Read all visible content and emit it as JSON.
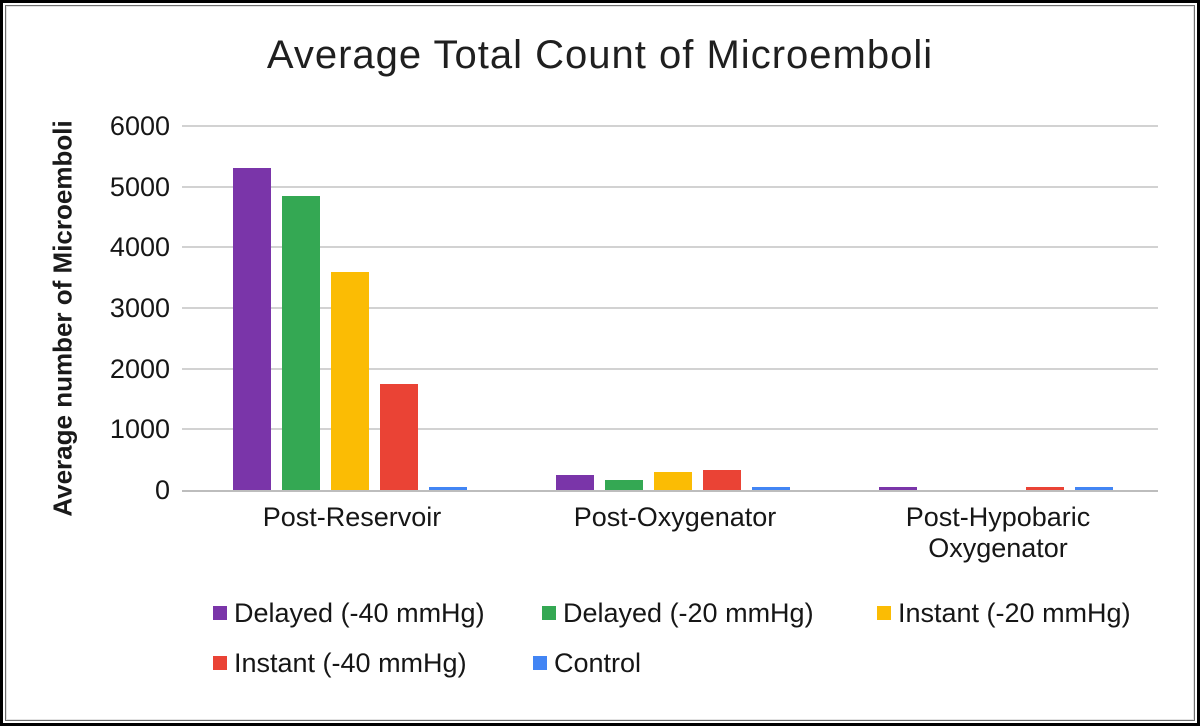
{
  "chart_data": {
    "type": "bar",
    "title": "Average Total Count of Microemboli",
    "ylabel": "Average number of Microemboli",
    "xlabel": "",
    "categories": [
      "Post-Reservoir",
      "Post-Oxygenator",
      "Post-Hypobaric Oxygenator"
    ],
    "series": [
      {
        "name": "Delayed (-40 mmHg)",
        "color": "#7A35A9",
        "values": [
          5300,
          240,
          50
        ]
      },
      {
        "name": "Delayed (-20 mmHg)",
        "color": "#34A853",
        "values": [
          4850,
          160,
          0
        ]
      },
      {
        "name": "Instant (-20 mmHg)",
        "color": "#FBBC04",
        "values": [
          3600,
          290,
          0
        ]
      },
      {
        "name": "Instant (-40 mmHg)",
        "color": "#EA4335",
        "values": [
          1750,
          330,
          45
        ]
      },
      {
        "name": "Control",
        "color": "#4285F4",
        "values": [
          55,
          45,
          50
        ]
      }
    ],
    "yticks": [
      0,
      1000,
      2000,
      3000,
      4000,
      5000,
      6000
    ],
    "ylim": [
      0,
      6000
    ],
    "grid": true,
    "gridline_color": "#d2d2d2",
    "baseline_color": "#bdbdbd",
    "legend_position": "bottom",
    "legend_rows": [
      [
        0,
        1,
        2
      ],
      [
        3,
        4
      ]
    ]
  }
}
